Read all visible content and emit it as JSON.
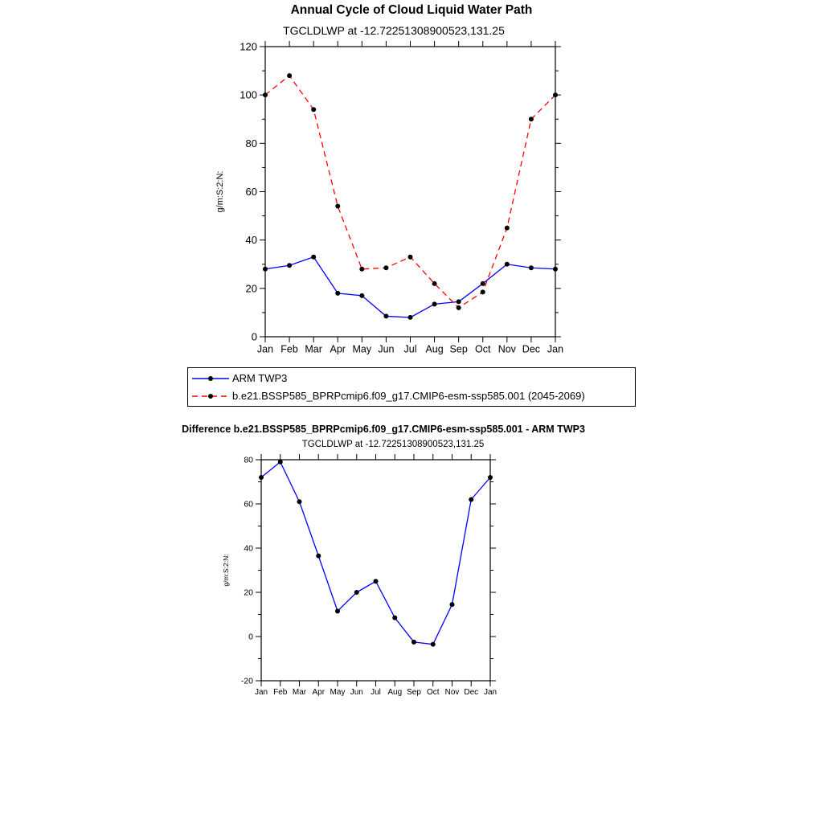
{
  "page": {
    "background": "#ffffff"
  },
  "chart_data": [
    {
      "type": "line",
      "title": "Annual Cycle of Cloud Liquid Water Path",
      "subtitle": "TGCLDLWP at -12.72251308900523,131.25",
      "ylabel": "g/m:S:2:N:",
      "categories": [
        "Jan",
        "Feb",
        "Mar",
        "Apr",
        "May",
        "Jun",
        "Jul",
        "Aug",
        "Sep",
        "Oct",
        "Nov",
        "Dec",
        "Jan"
      ],
      "ylim": [
        0,
        120
      ],
      "ytick_major": 20,
      "ytick_minor": 10,
      "grid": false,
      "legend_position": "below-left",
      "marker_color": "#000000",
      "series": [
        {
          "name": "ARM TWP3",
          "color": "#0000ff",
          "line_style": "solid",
          "values": [
            28,
            29.5,
            33,
            18,
            17,
            8.5,
            8,
            13.5,
            14.5,
            22,
            30,
            28.5,
            28
          ]
        },
        {
          "name": "b.e21.BSSP585_BPRPcmip6.f09_g17.CMIP6-esm-ssp585.001 (2045-2069)",
          "color": "#ff0000",
          "line_style": "dashed",
          "values": [
            100,
            108,
            94,
            54,
            28,
            28.5,
            33,
            22,
            12,
            18.5,
            45,
            90,
            100
          ]
        }
      ]
    },
    {
      "type": "line",
      "title": "Difference b.e21.BSSP585_BPRPcmip6.f09_g17.CMIP6-esm-ssp585.001 - ARM TWP3",
      "subtitle": "TGCLDLWP at -12.72251308900523,131.25",
      "ylabel": "g/m:S:2:N:",
      "categories": [
        "Jan",
        "Feb",
        "Mar",
        "Apr",
        "May",
        "Jun",
        "Jul",
        "Aug",
        "Sep",
        "Oct",
        "Nov",
        "Dec",
        "Jan"
      ],
      "ylim": [
        -20,
        80
      ],
      "ytick_major": 20,
      "ytick_minor": 10,
      "grid": false,
      "marker_color": "#000000",
      "series": [
        {
          "color": "#0000ff",
          "line_style": "solid",
          "values": [
            72,
            79,
            61,
            36.5,
            11.5,
            20,
            25,
            8.5,
            -2.5,
            -3.5,
            14.5,
            62,
            72
          ]
        }
      ]
    }
  ]
}
